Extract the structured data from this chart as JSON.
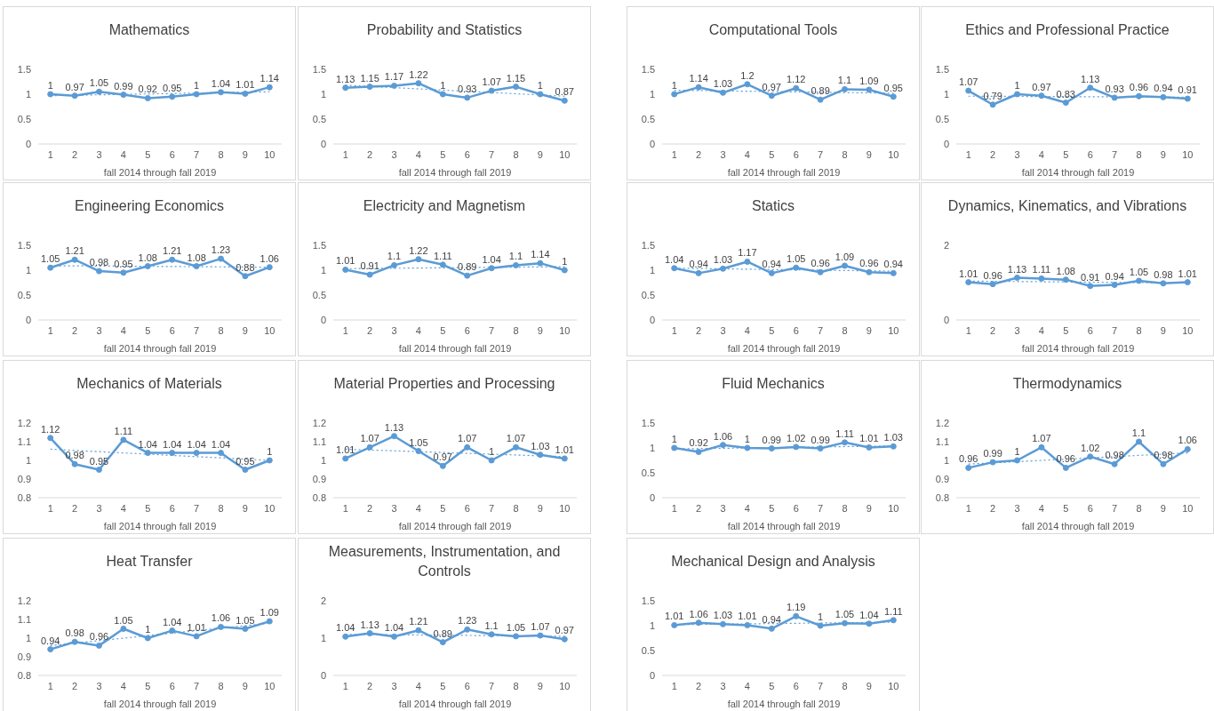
{
  "chart_data": [
    {
      "type": "line",
      "title": "Mathematics",
      "xlabel": "fall 2014 through fall 2019",
      "xlim": [
        0.5,
        10.5
      ],
      "xticks": [
        1,
        2,
        3,
        4,
        5,
        6,
        7,
        8,
        9,
        10
      ],
      "ylim": [
        0,
        1.5
      ],
      "yticks": [
        0,
        0.5,
        1,
        1.5
      ],
      "marker": "circle",
      "data_labels": true,
      "series": [
        {
          "color": "#5b9bd5",
          "x": [
            1,
            2,
            3,
            4,
            5,
            6,
            7,
            8,
            9,
            10
          ],
          "values": [
            1,
            0.97,
            1.05,
            0.99,
            0.92,
            0.95,
            1,
            1.04,
            1.01,
            1.14
          ]
        },
        {
          "type": "line",
          "color": "#5b9bd5",
          "line_style": "dotted",
          "marker": "none",
          "x": [
            1,
            10
          ],
          "values": [
            0.97,
            1.05
          ],
          "value_labels": [
            null,
            null
          ]
        }
      ]
    },
    {
      "type": "line",
      "title": "Probability and Statistics",
      "xlabel": "fall 2014 through fall 2019",
      "xlim": [
        0.5,
        10.5
      ],
      "xticks": [
        1,
        2,
        3,
        4,
        5,
        6,
        7,
        8,
        9,
        10
      ],
      "ylim": [
        0,
        1.5
      ],
      "yticks": [
        0,
        0.5,
        1,
        1.5
      ],
      "marker": "circle",
      "data_labels": true,
      "series": [
        {
          "color": "#5b9bd5",
          "x": [
            1,
            2,
            3,
            4,
            5,
            6,
            7,
            8,
            9,
            10
          ],
          "values": [
            1.13,
            1.15,
            1.17,
            1.22,
            1,
            0.93,
            1.07,
            1.15,
            1,
            0.87
          ]
        },
        {
          "type": "line",
          "color": "#5b9bd5",
          "line_style": "dotted",
          "marker": "none",
          "x": [
            1,
            10
          ],
          "values": [
            1.18,
            0.96
          ],
          "value_labels": [
            null,
            null
          ]
        }
      ]
    },
    {
      "type": "line",
      "title": "Computational Tools",
      "xlabel": "fall 2014 through fall 2019",
      "xlim": [
        0.5,
        10.5
      ],
      "xticks": [
        1,
        2,
        3,
        4,
        5,
        6,
        7,
        8,
        9,
        10
      ],
      "ylim": [
        0,
        1.5
      ],
      "yticks": [
        0,
        0.5,
        1,
        1.5
      ],
      "marker": "circle",
      "data_labels": true,
      "series": [
        {
          "color": "#5b9bd5",
          "x": [
            1,
            2,
            3,
            4,
            5,
            6,
            7,
            8,
            9,
            10
          ],
          "values": [
            1,
            1.14,
            1.03,
            1.2,
            0.97,
            1.12,
            0.89,
            1.1,
            1.09,
            0.95
          ]
        },
        {
          "type": "line",
          "color": "#5b9bd5",
          "line_style": "dotted",
          "marker": "none",
          "x": [
            1,
            10
          ],
          "values": [
            1.08,
            1.02
          ],
          "value_labels": [
            null,
            null
          ]
        }
      ]
    },
    {
      "type": "line",
      "title": "Ethics and Professional Practice",
      "xlabel": "fall 2014 through fall 2019",
      "xlim": [
        0.5,
        10.5
      ],
      "xticks": [
        1,
        2,
        3,
        4,
        5,
        6,
        7,
        8,
        9,
        10
      ],
      "ylim": [
        0,
        1.5
      ],
      "yticks": [
        0,
        0.5,
        1,
        1.5
      ],
      "marker": "circle",
      "data_labels": true,
      "series": [
        {
          "color": "#5b9bd5",
          "x": [
            1,
            2,
            3,
            4,
            5,
            6,
            7,
            8,
            9,
            10
          ],
          "values": [
            1.07,
            0.79,
            1,
            0.97,
            0.83,
            1.13,
            0.93,
            0.96,
            0.94,
            0.91
          ]
        },
        {
          "type": "line",
          "color": "#5b9bd5",
          "line_style": "dotted",
          "marker": "none",
          "x": [
            1,
            10
          ],
          "values": [
            0.96,
            0.94
          ],
          "value_labels": [
            null,
            null
          ]
        }
      ]
    },
    {
      "type": "line",
      "title": "Engineering Economics",
      "xlabel": "fall 2014 through fall 2019",
      "xlim": [
        0.5,
        10.5
      ],
      "xticks": [
        1,
        2,
        3,
        4,
        5,
        6,
        7,
        8,
        9,
        10
      ],
      "ylim": [
        0,
        1.5
      ],
      "yticks": [
        0,
        0.5,
        1,
        1.5
      ],
      "marker": "circle",
      "data_labels": true,
      "series": [
        {
          "color": "#5b9bd5",
          "x": [
            1,
            2,
            3,
            4,
            5,
            6,
            7,
            8,
            9,
            10
          ],
          "values": [
            1.05,
            1.21,
            0.98,
            0.95,
            1.08,
            1.21,
            1.08,
            1.23,
            0.88,
            1.06
          ]
        },
        {
          "type": "line",
          "color": "#5b9bd5",
          "line_style": "dotted",
          "marker": "none",
          "x": [
            1,
            10
          ],
          "values": [
            1.09,
            1.06
          ],
          "value_labels": [
            null,
            null
          ]
        }
      ]
    },
    {
      "type": "line",
      "title": "Electricity and Magnetism",
      "xlabel": "fall 2014 through fall 2019",
      "xlim": [
        0.5,
        10.5
      ],
      "xticks": [
        1,
        2,
        3,
        4,
        5,
        6,
        7,
        8,
        9,
        10
      ],
      "ylim": [
        0,
        1.5
      ],
      "yticks": [
        0,
        0.5,
        1,
        1.5
      ],
      "marker": "circle",
      "data_labels": true,
      "series": [
        {
          "color": "#5b9bd5",
          "x": [
            1,
            2,
            3,
            4,
            5,
            6,
            7,
            8,
            9,
            10
          ],
          "values": [
            1.01,
            0.91,
            1.1,
            1.22,
            1.11,
            0.89,
            1.04,
            1.1,
            1.14,
            1
          ]
        },
        {
          "type": "line",
          "color": "#5b9bd5",
          "line_style": "dotted",
          "marker": "none",
          "x": [
            1,
            10
          ],
          "values": [
            1.03,
            1.07
          ],
          "value_labels": [
            null,
            null
          ]
        }
      ]
    },
    {
      "type": "line",
      "title": "Statics",
      "xlabel": "fall 2014 through fall 2019",
      "xlim": [
        0.5,
        10.5
      ],
      "xticks": [
        1,
        2,
        3,
        4,
        5,
        6,
        7,
        8,
        9,
        10
      ],
      "ylim": [
        0,
        1.5
      ],
      "yticks": [
        0,
        0.5,
        1,
        1.5
      ],
      "marker": "circle",
      "data_labels": true,
      "series": [
        {
          "color": "#5b9bd5",
          "x": [
            1,
            2,
            3,
            4,
            5,
            6,
            7,
            8,
            9,
            10
          ],
          "values": [
            1.04,
            0.94,
            1.03,
            1.17,
            0.94,
            1.05,
            0.96,
            1.09,
            0.96,
            0.94
          ]
        },
        {
          "type": "line",
          "color": "#5b9bd5",
          "line_style": "dotted",
          "marker": "none",
          "x": [
            1,
            10
          ],
          "values": [
            1.04,
            0.98
          ],
          "value_labels": [
            null,
            null
          ]
        }
      ]
    },
    {
      "type": "line",
      "title": "Dynamics, Kinematics, and Vibrations",
      "xlabel": "fall 2014 through fall 2019",
      "xlim": [
        0.5,
        10.5
      ],
      "xticks": [
        1,
        2,
        3,
        4,
        5,
        6,
        7,
        8,
        9,
        10
      ],
      "ylim": [
        0,
        2
      ],
      "yticks": [
        0,
        2
      ],
      "marker": "circle",
      "data_labels": true,
      "series": [
        {
          "color": "#5b9bd5",
          "x": [
            1,
            2,
            3,
            4,
            5,
            6,
            7,
            8,
            9,
            10
          ],
          "values": [
            1.01,
            0.96,
            1.13,
            1.11,
            1.08,
            0.91,
            0.94,
            1.05,
            0.98,
            1.01
          ]
        },
        {
          "type": "line",
          "color": "#5b9bd5",
          "line_style": "dotted",
          "marker": "none",
          "x": [
            1,
            10
          ],
          "values": [
            1.04,
            0.99
          ],
          "value_labels": [
            null,
            null
          ]
        }
      ]
    },
    {
      "type": "line",
      "title": "Mechanics of Materials",
      "xlabel": "fall 2014 through fall 2019",
      "xlim": [
        0.5,
        10.5
      ],
      "xticks": [
        1,
        2,
        3,
        4,
        5,
        6,
        7,
        8,
        9,
        10
      ],
      "ylim": [
        0.8,
        1.2
      ],
      "yticks": [
        0.8,
        0.9,
        1,
        1.1,
        1.2
      ],
      "marker": "circle",
      "data_labels": true,
      "series": [
        {
          "color": "#5b9bd5",
          "x": [
            1,
            2,
            3,
            4,
            5,
            6,
            7,
            8,
            9,
            10
          ],
          "values": [
            1.12,
            0.98,
            0.95,
            1.11,
            1.04,
            1.04,
            1.04,
            1.04,
            0.95,
            1
          ]
        },
        {
          "type": "line",
          "color": "#5b9bd5",
          "line_style": "dotted",
          "marker": "none",
          "x": [
            1,
            10
          ],
          "values": [
            1.06,
            1.0
          ],
          "value_labels": [
            null,
            null
          ]
        }
      ]
    },
    {
      "type": "line",
      "title": "Material Properties and Processing",
      "xlabel": "fall 2014 through fall 2019",
      "xlim": [
        0.5,
        10.5
      ],
      "xticks": [
        1,
        2,
        3,
        4,
        5,
        6,
        7,
        8,
        9,
        10
      ],
      "ylim": [
        0.8,
        1.2
      ],
      "yticks": [
        0.8,
        0.9,
        1,
        1.1,
        1.2
      ],
      "marker": "circle",
      "data_labels": true,
      "series": [
        {
          "color": "#5b9bd5",
          "x": [
            1,
            2,
            3,
            4,
            5,
            6,
            7,
            8,
            9,
            10
          ],
          "values": [
            1.01,
            1.07,
            1.13,
            1.05,
            0.97,
            1.07,
            1,
            1.07,
            1.03,
            1.01
          ]
        },
        {
          "type": "line",
          "color": "#5b9bd5",
          "line_style": "dotted",
          "marker": "none",
          "x": [
            1,
            10
          ],
          "values": [
            1.06,
            1.02
          ],
          "value_labels": [
            null,
            null
          ]
        }
      ]
    },
    {
      "type": "line",
      "title": "Fluid Mechanics",
      "xlabel": "fall 2014 through fall 2019",
      "xlim": [
        0.5,
        10.5
      ],
      "xticks": [
        1,
        2,
        3,
        4,
        5,
        6,
        7,
        8,
        9,
        10
      ],
      "ylim": [
        0,
        1.5
      ],
      "yticks": [
        0,
        0.5,
        1,
        1.5
      ],
      "marker": "circle",
      "data_labels": true,
      "series": [
        {
          "color": "#5b9bd5",
          "x": [
            1,
            2,
            3,
            4,
            5,
            6,
            7,
            8,
            9,
            10
          ],
          "values": [
            1,
            0.92,
            1.06,
            1,
            0.99,
            1.02,
            0.99,
            1.11,
            1.01,
            1.03
          ]
        },
        {
          "type": "line",
          "color": "#5b9bd5",
          "line_style": "dotted",
          "marker": "none",
          "x": [
            1,
            10
          ],
          "values": [
            0.98,
            1.04
          ],
          "value_labels": [
            null,
            null
          ]
        }
      ]
    },
    {
      "type": "line",
      "title": "Thermodynamics",
      "xlabel": "fall 2014 through fall 2019",
      "xlim": [
        0.5,
        10.5
      ],
      "xticks": [
        1,
        2,
        3,
        4,
        5,
        6,
        7,
        8,
        9,
        10
      ],
      "ylim": [
        0.8,
        1.2
      ],
      "yticks": [
        0.8,
        0.9,
        1,
        1.1,
        1.2
      ],
      "marker": "circle",
      "data_labels": true,
      "series": [
        {
          "color": "#5b9bd5",
          "x": [
            1,
            2,
            3,
            4,
            5,
            6,
            7,
            8,
            9,
            10
          ],
          "values": [
            0.96,
            0.99,
            1,
            1.07,
            0.96,
            1.02,
            0.98,
            1.1,
            0.98,
            1.06
          ]
        },
        {
          "type": "line",
          "color": "#5b9bd5",
          "line_style": "dotted",
          "marker": "none",
          "x": [
            1,
            10
          ],
          "values": [
            0.98,
            1.04
          ],
          "value_labels": [
            null,
            null
          ]
        }
      ]
    },
    {
      "type": "line",
      "title": "Heat Transfer",
      "xlabel": "fall 2014 through fall 2019",
      "xlim": [
        0.5,
        10.5
      ],
      "xticks": [
        1,
        2,
        3,
        4,
        5,
        6,
        7,
        8,
        9,
        10
      ],
      "ylim": [
        0.8,
        1.2
      ],
      "yticks": [
        0.8,
        0.9,
        1,
        1.1,
        1.2
      ],
      "marker": "circle",
      "data_labels": true,
      "series": [
        {
          "color": "#5b9bd5",
          "x": [
            1,
            2,
            3,
            4,
            5,
            6,
            7,
            8,
            9,
            10
          ],
          "values": [
            0.94,
            0.98,
            0.96,
            1.05,
            1,
            1.04,
            1.01,
            1.06,
            1.05,
            1.09
          ]
        },
        {
          "type": "line",
          "color": "#5b9bd5",
          "line_style": "dotted",
          "marker": "none",
          "x": [
            1,
            10
          ],
          "values": [
            0.96,
            1.08
          ],
          "value_labels": [
            null,
            null
          ]
        }
      ]
    },
    {
      "type": "line",
      "title": "Measurements, Instrumentation, and Controls",
      "xlabel": "fall 2014 through fall 2019",
      "xlim": [
        0.5,
        10.5
      ],
      "xticks": [
        1,
        2,
        3,
        4,
        5,
        6,
        7,
        8,
        9,
        10
      ],
      "ylim": [
        0,
        2
      ],
      "yticks": [
        0,
        1,
        2
      ],
      "marker": "circle",
      "data_labels": true,
      "series": [
        {
          "color": "#5b9bd5",
          "x": [
            1,
            2,
            3,
            4,
            5,
            6,
            7,
            8,
            9,
            10
          ],
          "values": [
            1.04,
            1.13,
            1.04,
            1.21,
            0.89,
            1.23,
            1.1,
            1.05,
            1.07,
            0.97
          ]
        },
        {
          "type": "line",
          "color": "#5b9bd5",
          "line_style": "dotted",
          "marker": "none",
          "x": [
            1,
            10
          ],
          "values": [
            1.1,
            1.05
          ],
          "value_labels": [
            null,
            null
          ]
        }
      ]
    },
    {
      "type": "line",
      "title": "Mechanical Design and Analysis",
      "xlabel": "fall 2014 through fall 2019",
      "xlim": [
        0.5,
        10.5
      ],
      "xticks": [
        1,
        2,
        3,
        4,
        5,
        6,
        7,
        8,
        9,
        10
      ],
      "ylim": [
        0,
        1.5
      ],
      "yticks": [
        0,
        0.5,
        1,
        1.5
      ],
      "marker": "circle",
      "data_labels": true,
      "series": [
        {
          "color": "#5b9bd5",
          "x": [
            1,
            2,
            3,
            4,
            5,
            6,
            7,
            8,
            9,
            10
          ],
          "values": [
            1.01,
            1.06,
            1.03,
            1.01,
            0.94,
            1.19,
            1,
            1.05,
            1.04,
            1.11
          ]
        },
        {
          "type": "line",
          "color": "#5b9bd5",
          "line_style": "dotted",
          "marker": "none",
          "x": [
            1,
            10
          ],
          "values": [
            1.02,
            1.07
          ],
          "value_labels": [
            null,
            null
          ]
        }
      ]
    }
  ]
}
